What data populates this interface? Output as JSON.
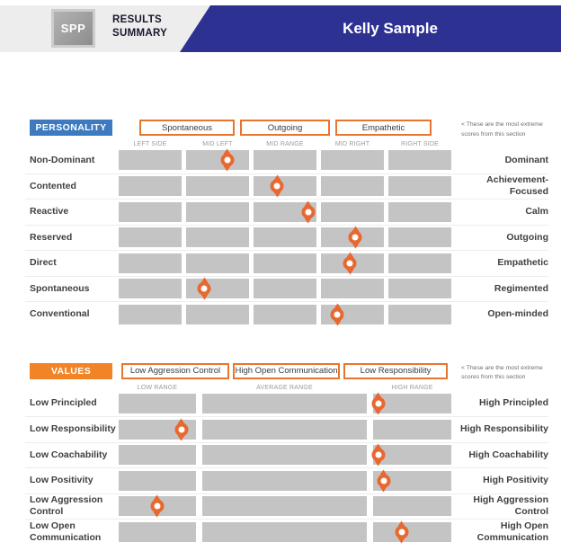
{
  "header": {
    "logo_text": "SPP",
    "report_title_line1": "RESULTS",
    "report_title_line2": "SUMMARY",
    "person_name": "Kelly Sample"
  },
  "colors": {
    "banner_blue": "#2d3192",
    "personality_blue": "#3d7ac0",
    "values_orange": "#f08426",
    "score_box_border_orange": "#e8762a",
    "marker_orange": "#e8682f",
    "scale_bar_gray": "#c4c4c4"
  },
  "personality": {
    "section_label": "PERSONALITY",
    "extreme_scores": [
      "Spontaneous",
      "Outgoing",
      "Empathetic"
    ],
    "annotation": "< These are the most extreme scores from this section",
    "column_labels": [
      "LEFT SIDE",
      "MID LEFT",
      "MID RANGE",
      "MID RIGHT",
      "RIGHT SIDE"
    ],
    "rows": [
      {
        "left": "Non-Dominant",
        "right": "Dominant",
        "position": 32.7
      },
      {
        "left": "Contented",
        "right": "Achievement-Focused",
        "position": 47.6
      },
      {
        "left": "Reactive",
        "right": "Calm",
        "position": 57.0
      },
      {
        "left": "Reserved",
        "right": "Outgoing",
        "position": 71.1
      },
      {
        "left": "Direct",
        "right": "Empathetic",
        "position": 69.5
      },
      {
        "left": "Spontaneous",
        "right": "Regimented",
        "position": 25.7
      },
      {
        "left": "Conventional",
        "right": "Open-minded",
        "position": 65.7
      }
    ]
  },
  "values": {
    "section_label": "VALUES",
    "extreme_scores": [
      "Low Aggression Control",
      "High Open Communication",
      "Low Responsibility"
    ],
    "annotation": "< These are the most extreme scores from this section",
    "column_labels": [
      "LOW RANGE",
      "AVERAGE RANGE",
      "HIGH RANGE"
    ],
    "rows": [
      {
        "left": "Low Principled",
        "right": "High Principled",
        "position": 78.1
      },
      {
        "left": "Low Responsibility",
        "right": "High Responsibility",
        "position": 18.9
      },
      {
        "left": "Low Coachability",
        "right": "High Coachability",
        "position": 78.1
      },
      {
        "left": "Low Positivity",
        "right": "High Positivity",
        "position": 79.7
      },
      {
        "left": "Low Aggression Control",
        "right": "High Aggression Control",
        "position": 11.6
      },
      {
        "left": "Low Open Communication",
        "right": "High Open Communication",
        "position": 85.1
      }
    ]
  }
}
